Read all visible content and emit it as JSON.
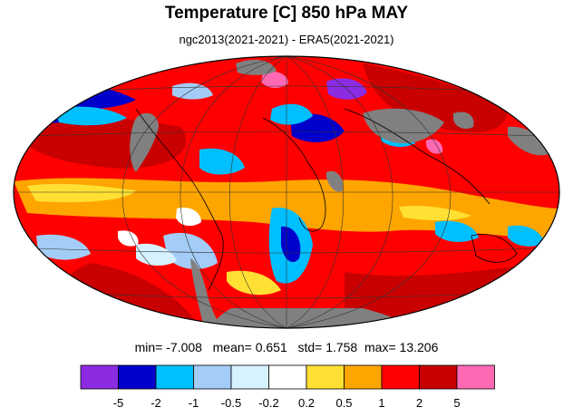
{
  "title": "Temperature [C] 850 hPa MAY",
  "subtitle": "ngc2013(2021-2021) - ERA5(2021-2021)",
  "stats": {
    "min_label": "min=",
    "min": "-7.008",
    "mean_label": "mean=",
    "mean": "0.651",
    "std_label": "std=",
    "std": "1.758",
    "max_label": "max=",
    "max": "13.206"
  },
  "colorbar": {
    "colors": [
      "#8b2be2",
      "#0000cd",
      "#00bfff",
      "#a3cdf7",
      "#d6f2ff",
      "#ffffff",
      "#ffe033",
      "#ffa500",
      "#ff0000",
      "#c80000",
      "#ff69b4"
    ],
    "ticks": [
      "-5",
      "-2",
      "-1",
      "-0.5",
      "-0.2",
      "0.2",
      "0.5",
      "1",
      "2",
      "5"
    ]
  },
  "map": {
    "projection": "mollweide",
    "land_mask_color": "#808080",
    "background_color": "#ff0000"
  }
}
